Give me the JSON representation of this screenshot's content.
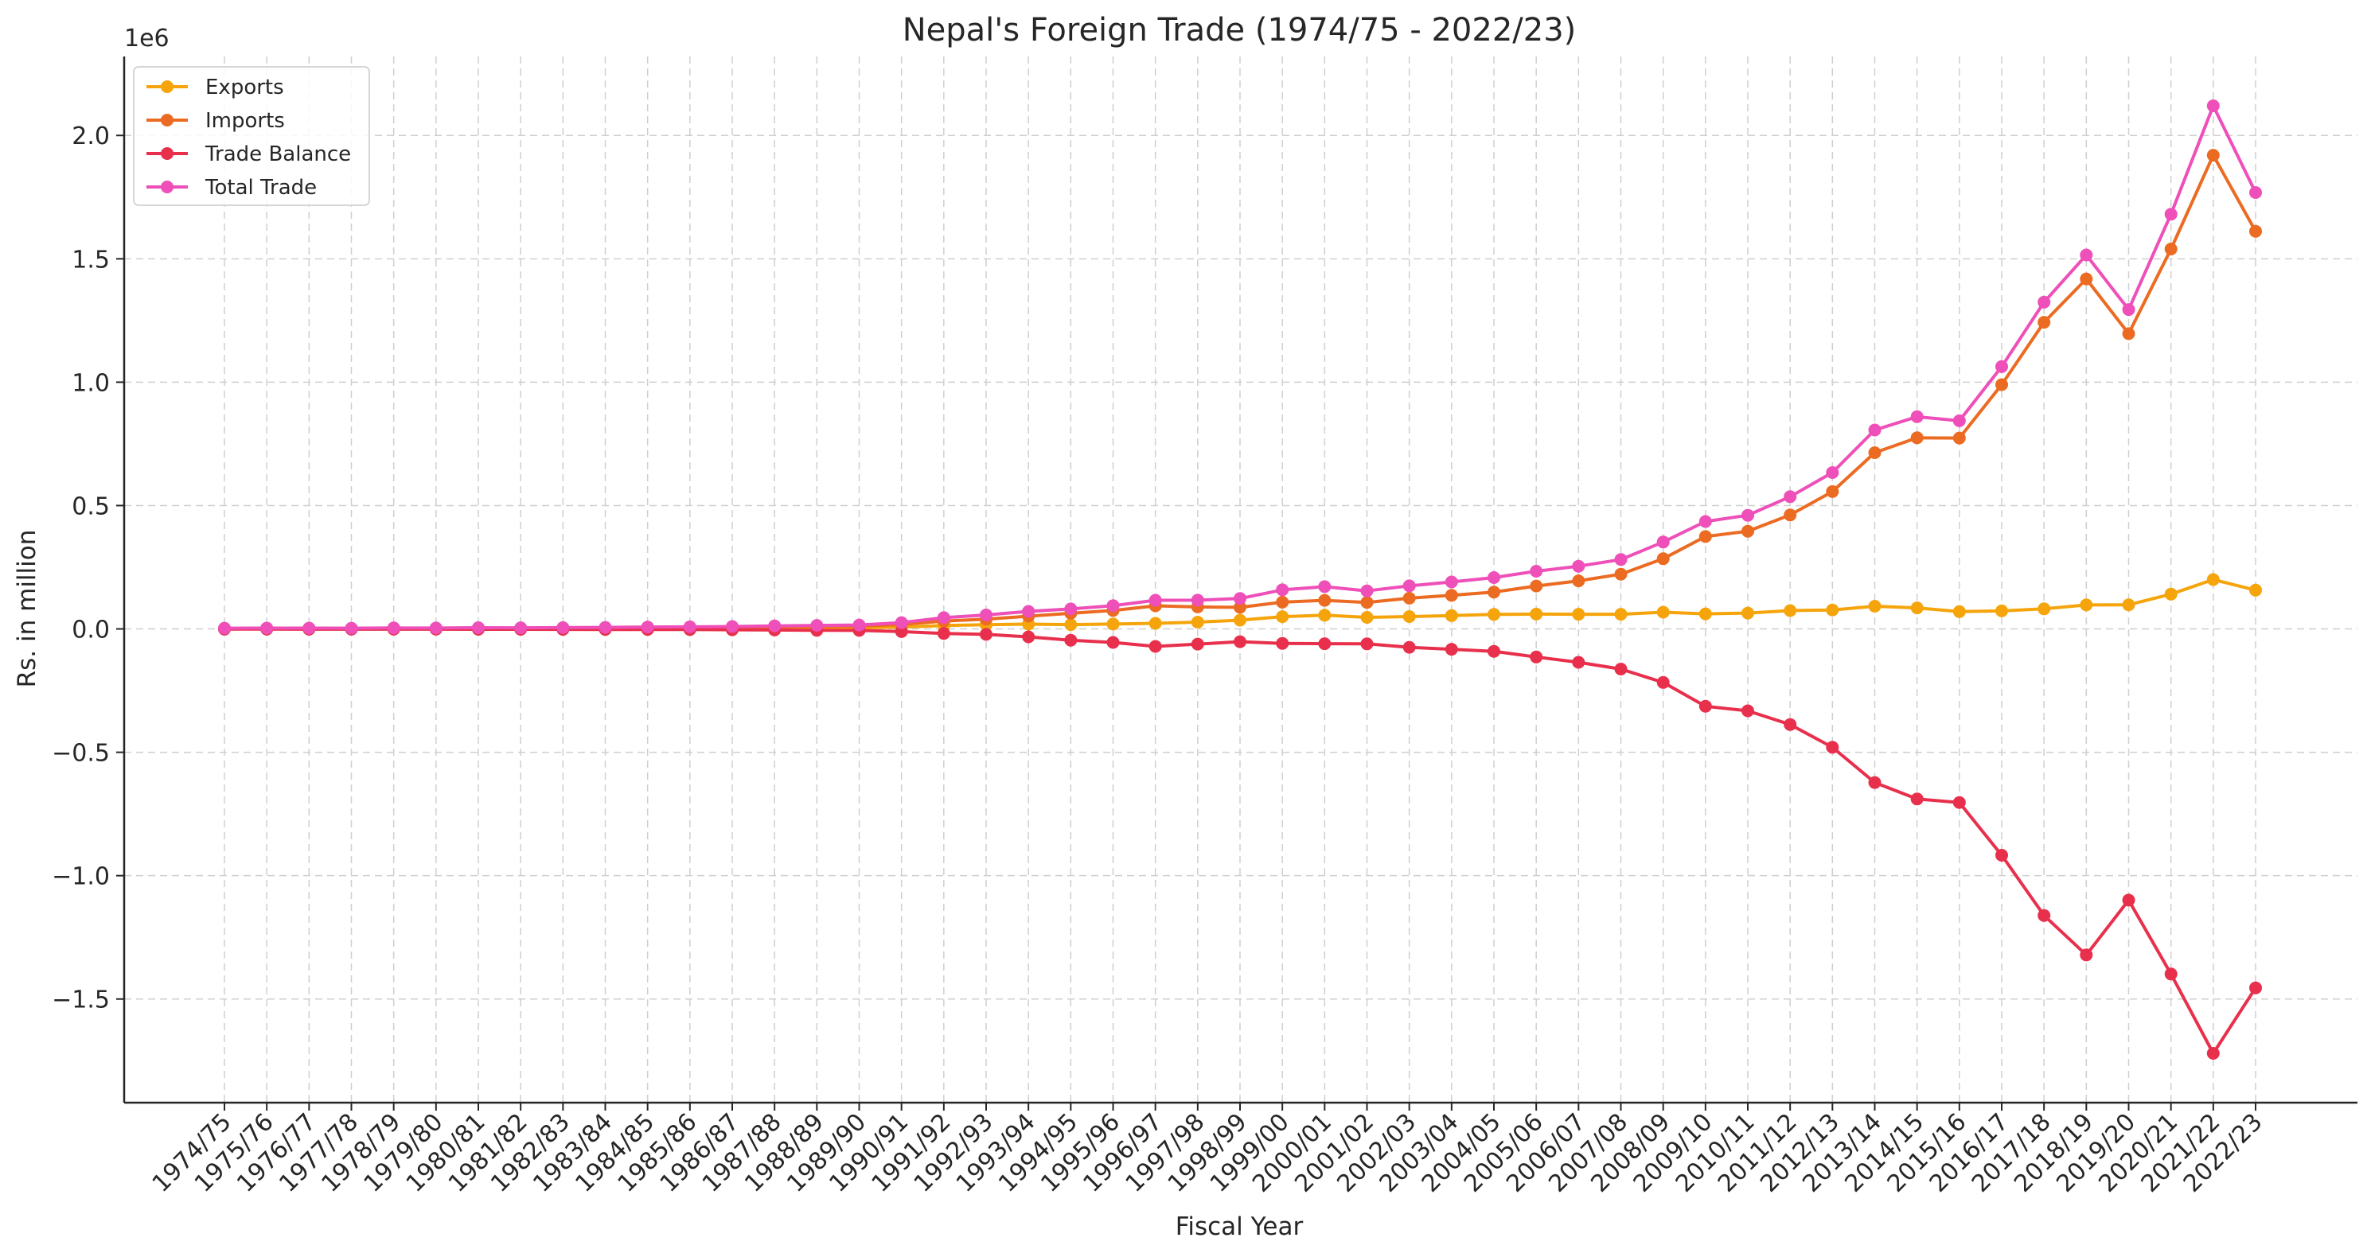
{
  "chart_data": {
    "type": "line",
    "title": "Nepal's Foreign Trade (1974/75 - 2022/23)",
    "xlabel": "Fiscal Year",
    "ylabel": "Rs. in million",
    "y_offset_label": "1e6",
    "y_scale_factor": 1000000,
    "ylim": [
      -1.92,
      2.32
    ],
    "y_ticks": [
      -1.5,
      -1.0,
      -0.5,
      0.0,
      0.5,
      1.0,
      1.5,
      2.0
    ],
    "y_tick_labels": [
      "−1.5",
      "−1.0",
      "−0.5",
      "0.0",
      "0.5",
      "1.0",
      "1.5",
      "2.0"
    ],
    "grid": true,
    "legend_position": "top-left",
    "categories": [
      "1974/75",
      "1975/76",
      "1976/77",
      "1977/78",
      "1978/79",
      "1979/80",
      "1980/81",
      "1981/82",
      "1982/83",
      "1983/84",
      "1984/85",
      "1985/86",
      "1986/87",
      "1987/88",
      "1988/89",
      "1989/90",
      "1990/91",
      "1991/92",
      "1992/93",
      "1993/94",
      "1994/95",
      "1995/96",
      "1996/97",
      "1997/98",
      "1998/99",
      "1999/00",
      "2000/01",
      "2001/02",
      "2002/03",
      "2003/04",
      "2004/05",
      "2005/06",
      "2006/07",
      "2007/08",
      "2008/09",
      "2009/10",
      "2010/11",
      "2011/12",
      "2012/13",
      "2013/14",
      "2014/15",
      "2015/16",
      "2016/17",
      "2017/18",
      "2018/19",
      "2019/20",
      "2020/21",
      "2021/22",
      "2022/23"
    ],
    "series": [
      {
        "name": "Exports",
        "color": "#f5a50b",
        "values": [
          1000,
          1200,
          1100,
          1000,
          1500,
          1200,
          1600,
          1500,
          1700,
          2000,
          2800,
          3000,
          3200,
          4000,
          4200,
          5000,
          7400,
          13700,
          17300,
          19500,
          17600,
          19900,
          22600,
          27500,
          35700,
          49800,
          55700,
          46900,
          50000,
          53900,
          58700,
          60200,
          59400,
          59300,
          67700,
          61000,
          64300,
          74300,
          76900,
          91900,
          85300,
          70100,
          73000,
          81400,
          97100,
          97700,
          141100,
          200000,
          157100
        ]
      },
      {
        "name": "Imports",
        "color": "#ec6b22",
        "values": [
          2000,
          2000,
          2200,
          2100,
          2600,
          2400,
          3200,
          3000,
          3600,
          4100,
          5000,
          5600,
          6500,
          8400,
          10000,
          11000,
          18300,
          31900,
          39300,
          51600,
          63300,
          74500,
          93600,
          89000,
          87500,
          108500,
          115700,
          107400,
          124400,
          136300,
          149500,
          173800,
          194700,
          221900,
          284500,
          374300,
          396200,
          461700,
          556700,
          714400,
          774700,
          773600,
          990100,
          1242800,
          1418500,
          1196800,
          1539800,
          1920000,
          1611700
        ]
      },
      {
        "name": "Trade Balance",
        "color": "#e8304c",
        "values": [
          -1000,
          -800,
          -1100,
          -1100,
          -1100,
          -1200,
          -1600,
          -1500,
          -1900,
          -2100,
          -2200,
          -2600,
          -3300,
          -4400,
          -5800,
          -6000,
          -10900,
          -18200,
          -22000,
          -32100,
          -45700,
          -54600,
          -71000,
          -61500,
          -51800,
          -58700,
          -60000,
          -60500,
          -74400,
          -82400,
          -90800,
          -113600,
          -135300,
          -162600,
          -216800,
          -313300,
          -331900,
          -387400,
          -479800,
          -622500,
          -689400,
          -703500,
          -917100,
          -1161400,
          -1321400,
          -1099100,
          -1398700,
          -1720000,
          -1454600
        ]
      },
      {
        "name": "Total Trade",
        "color": "#ee4fb8",
        "values": [
          3000,
          3200,
          3300,
          3100,
          4100,
          3600,
          4800,
          4500,
          5300,
          6100,
          7800,
          8600,
          9700,
          12400,
          14200,
          16000,
          25700,
          45600,
          56600,
          71100,
          80900,
          94400,
          116200,
          116500,
          123200,
          158300,
          171400,
          154300,
          174400,
          190200,
          208200,
          234000,
          254100,
          281200,
          352200,
          435300,
          460500,
          536000,
          633600,
          806300,
          860000,
          843700,
          1063100,
          1324200,
          1515600,
          1294500,
          1680900,
          2120000,
          1768800
        ]
      }
    ]
  }
}
